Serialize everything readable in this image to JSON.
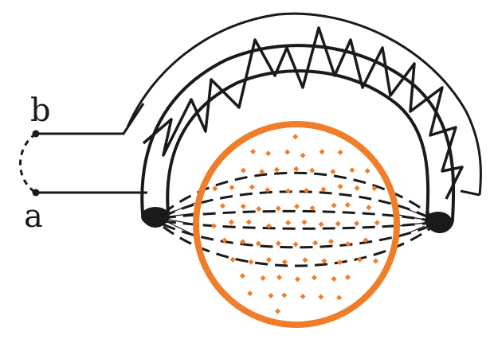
{
  "labels": {
    "terminal_b": "b",
    "terminal_a": "a"
  },
  "colors": {
    "ink": "#1a1a1a",
    "accent": "#f07d2a",
    "background": "#ffffff"
  },
  "field": {
    "circle_color": "#f07d2a",
    "dots_color": "#f07d2a",
    "field_lines_style": "dashed"
  }
}
